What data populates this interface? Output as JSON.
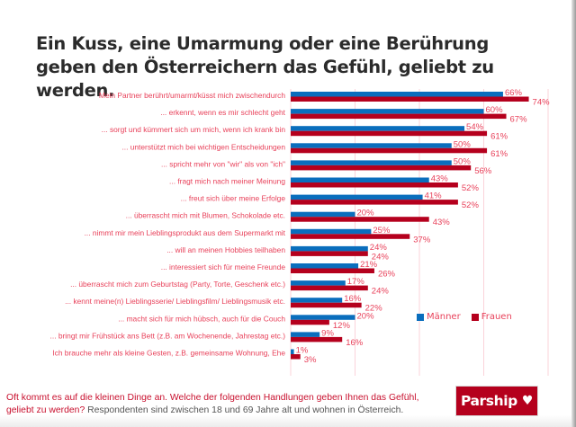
{
  "title": "Ein Kuss, eine Umarmung oder eine Berührung geben den Österreichern das Gefühl, geliebt zu werden.",
  "footer": {
    "question": "Oft kommt es auf die kleinen Dinge an. Welche der folgenden Handlungen geben Ihnen das Gefühl, geliebt zu werden?",
    "note": " Respondenten sind zwischen 18 und 69 Jahre alt und wohnen in Österreich."
  },
  "brand": {
    "name": "Parship",
    "icon": "heart-icon",
    "color": "#b5001d"
  },
  "chart_data": {
    "type": "bar",
    "orientation": "horizontal",
    "title": "Ein Kuss, eine Umarmung oder eine Berührung geben den Österreichern das Gefühl, geliebt zu werden.",
    "xlabel": "",
    "ylabel": "",
    "xlim": [
      0,
      80
    ],
    "gridlines": [
      0,
      20,
      40,
      60,
      80
    ],
    "grid": true,
    "legend_position": "lower-right",
    "value_suffix": "%",
    "categories": [
      "Mein Partner berührt/umarmt/küsst mich zwischendurch",
      "... erkennt, wenn es mir schlecht geht",
      "... sorgt und kümmert sich um mich, wenn ich krank bin",
      "... unterstützt mich bei wichtigen Entscheidungen",
      "... spricht mehr von \"wir\" als von \"ich\"",
      "... fragt mich nach meiner Meinung",
      "... freut sich über meine Erfolge",
      "... überrascht mich mit Blumen, Schokolade etc.",
      "... nimmt mir mein Lieblingsprodukt aus dem Supermarkt mit",
      "... will an meinen Hobbies teilhaben",
      "... interessiert sich für meine Freunde",
      "... überrascht mich zum Geburtstag (Party, Torte, Geschenk etc.)",
      "... kennt meine(n) Lieblingsserie/ Lieblingsfilm/ Lieblingsmusik etc.",
      "... macht sich für mich hübsch, auch für die Couch",
      "... bringt mir Frühstück ans Bett (z.B. am Wochenende, Jahrestag etc.)",
      "Ich brauche mehr als kleine Gesten, z.B. gemeinsame Wohnung, Ehe"
    ],
    "series": [
      {
        "name": "Männer",
        "color": "#0a6ebd",
        "values": [
          66,
          60,
          54,
          50,
          50,
          43,
          41,
          20,
          25,
          24,
          21,
          17,
          16,
          20,
          9,
          1
        ]
      },
      {
        "name": "Frauen",
        "color": "#b5001d",
        "values": [
          74,
          67,
          61,
          61,
          56,
          52,
          52,
          43,
          37,
          24,
          26,
          24,
          22,
          12,
          16,
          3
        ]
      }
    ]
  }
}
